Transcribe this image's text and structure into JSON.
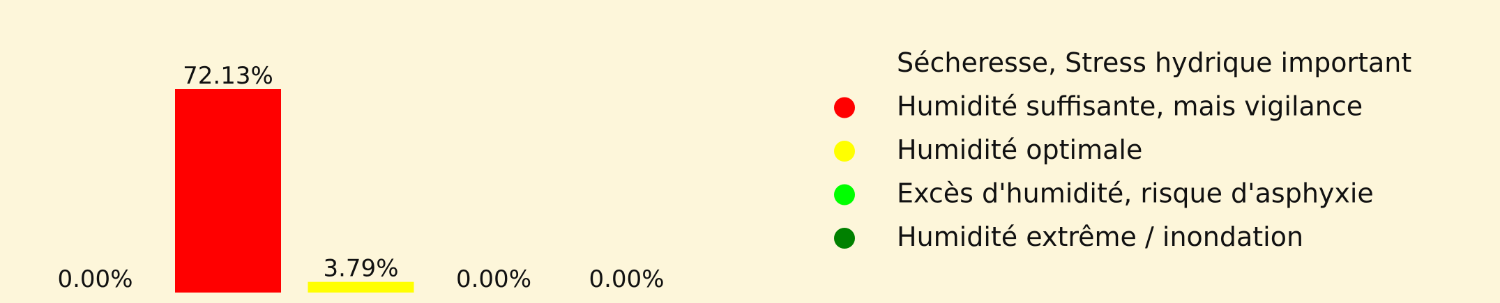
{
  "chart_data": {
    "type": "bar",
    "categories": [
      "Sécheresse, Stress hydrique important",
      "Humidité suffisante, mais vigilance",
      "Humidité optimale",
      "Excès d'humidité, risque d'asphyxie",
      "Humidité extrême / inondation"
    ],
    "values": [
      0.0,
      72.13,
      3.79,
      0.0,
      0.0
    ],
    "data_labels": [
      "0.00%",
      "72.13%",
      "3.79%",
      "0.00%",
      "0.00%"
    ],
    "colors": [
      "#fdf6da",
      "#ff0000",
      "#ffff00",
      "#00ff00",
      "#008000"
    ],
    "title": "",
    "xlabel": "",
    "ylabel": "",
    "ylim": [
      0,
      80
    ],
    "grid": false,
    "axes_visible": false,
    "legend_placement": "right",
    "legend": [
      {
        "label": "Sécheresse, Stress hydrique important",
        "color": "#fdf6da"
      },
      {
        "label": "Humidité suffisante, mais vigilance",
        "color": "#ff0000"
      },
      {
        "label": "Humidité optimale",
        "color": "#ffff00"
      },
      {
        "label": "Excès d'humidité, risque d'asphyxie",
        "color": "#00ff00"
      },
      {
        "label": "Humidité extrême / inondation",
        "color": "#008000"
      }
    ]
  }
}
